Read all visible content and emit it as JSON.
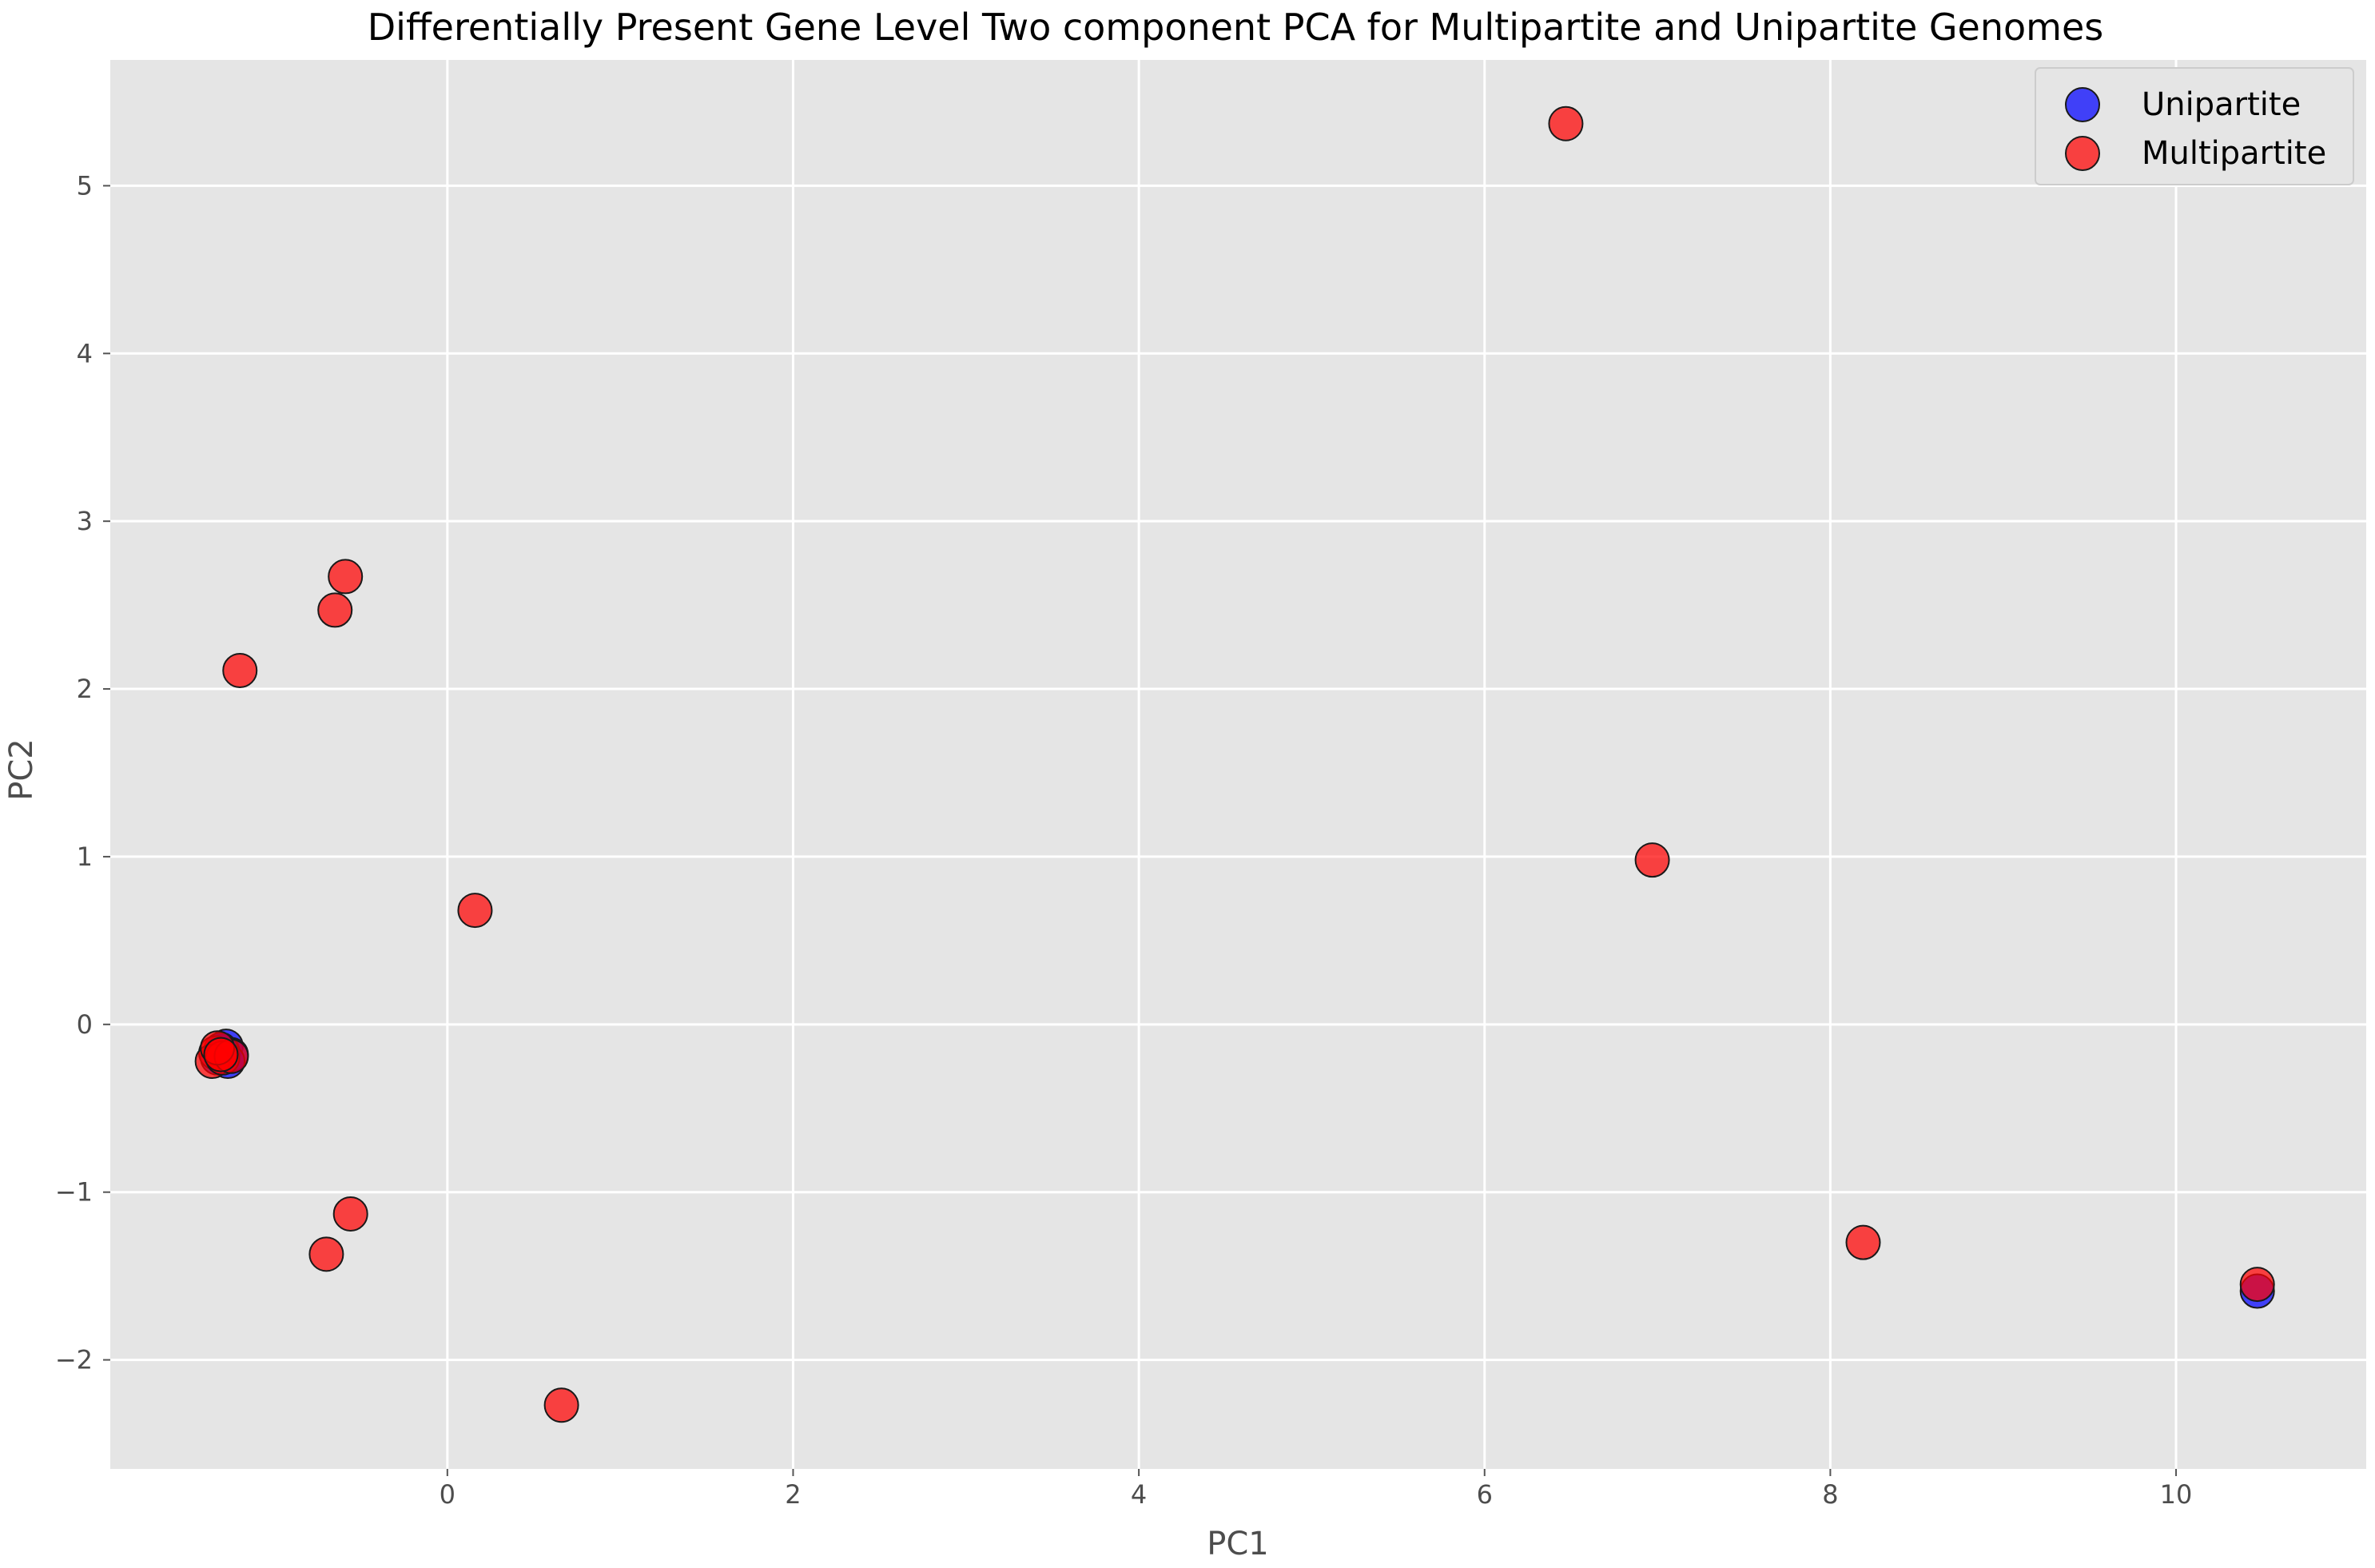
{
  "chart_data": {
    "type": "scatter",
    "title": "Differentially Present Gene Level Two component PCA for Multipartite and Unipartite Genomes",
    "xlabel": "PC1",
    "ylabel": "PC2",
    "xlim": [
      -1.95,
      11.1
    ],
    "ylim": [
      -2.65,
      5.75
    ],
    "xticks": [
      0,
      2,
      4,
      6,
      8,
      10
    ],
    "yticks": [
      -2,
      -1,
      0,
      1,
      2,
      3,
      4,
      5
    ],
    "xtick_labels": [
      "0",
      "2",
      "4",
      "6",
      "8",
      "10"
    ],
    "ytick_labels": [
      "−2",
      "−1",
      "0",
      "1",
      "2",
      "3",
      "4",
      "5"
    ],
    "grid": true,
    "legend_position": "top-right",
    "series": [
      {
        "name": "Unipartite",
        "color": "#0000ff",
        "points": [
          {
            "x": -1.28,
            "y": -0.13
          },
          {
            "x": -1.25,
            "y": -0.18
          },
          {
            "x": -1.3,
            "y": -0.16
          },
          {
            "x": -1.33,
            "y": -0.2
          },
          {
            "x": -1.27,
            "y": -0.22
          },
          {
            "x": -1.31,
            "y": -0.15
          },
          {
            "x": 10.47,
            "y": -1.59
          }
        ]
      },
      {
        "name": "Multipartite",
        "color": "#ff0000",
        "points": [
          {
            "x": 6.47,
            "y": 5.37
          },
          {
            "x": 6.97,
            "y": 0.98
          },
          {
            "x": 8.19,
            "y": -1.3
          },
          {
            "x": 10.47,
            "y": -1.55
          },
          {
            "x": -0.59,
            "y": 2.67
          },
          {
            "x": -0.65,
            "y": 2.47
          },
          {
            "x": -1.2,
            "y": 2.11
          },
          {
            "x": 0.16,
            "y": 0.68
          },
          {
            "x": -0.56,
            "y": -1.13
          },
          {
            "x": -0.7,
            "y": -1.37
          },
          {
            "x": 0.66,
            "y": -2.27
          },
          {
            "x": -1.34,
            "y": -0.17
          },
          {
            "x": -1.36,
            "y": -0.22
          },
          {
            "x": -1.3,
            "y": -0.2
          },
          {
            "x": -1.25,
            "y": -0.19
          },
          {
            "x": -1.33,
            "y": -0.14
          },
          {
            "x": -1.31,
            "y": -0.18
          }
        ]
      }
    ]
  }
}
